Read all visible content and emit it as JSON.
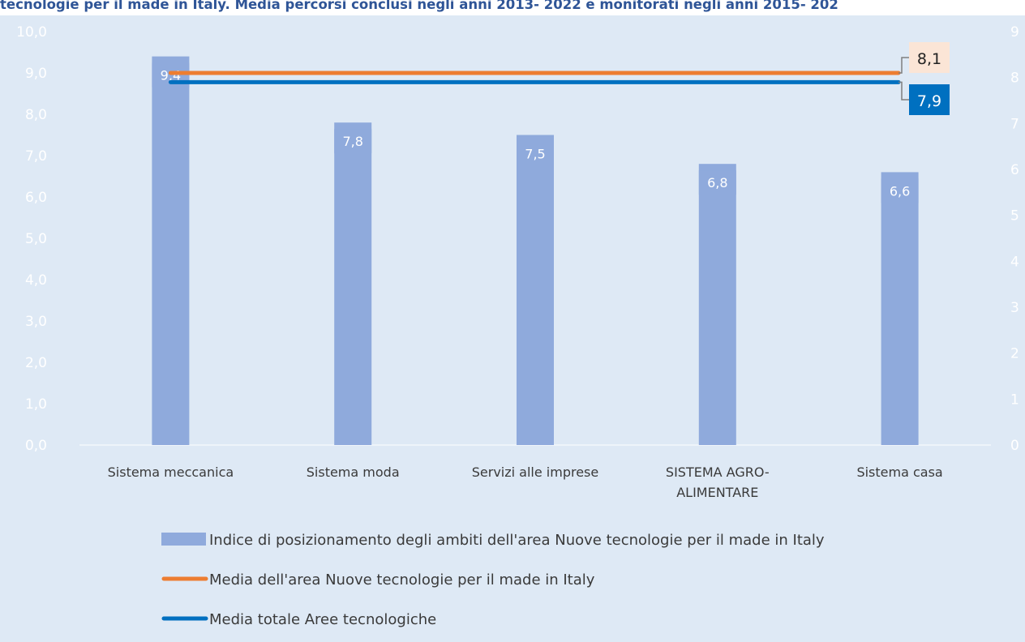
{
  "title": "tecnologie per il made in Italy. Media percorsi conclusi negli anni 2013- 2022 e monitorati negli anni 2015- 202",
  "colors": {
    "background": "#DEE9F5",
    "bar": "#8FAADC",
    "orange_line": "#ED7D31",
    "blue_line": "#0070C0",
    "orange_label_bg": "#FBE5D6",
    "blue_label_bg": "#0070C0",
    "title": "#2F5597",
    "axis": "#ffffff",
    "text": "#3a3a3a"
  },
  "chart_data": {
    "type": "bar",
    "title": "tecnologie per il made in Italy. Media percorsi conclusi negli anni 2013- 2022 e monitorati negli anni 2015- 202",
    "categories": [
      "Sistema meccanica",
      "Sistema moda",
      "Servizi alle imprese",
      "SISTEMA AGRO-ALIMENTARE",
      "Sistema casa"
    ],
    "category_lines": [
      [
        "Sistema meccanica"
      ],
      [
        "Sistema moda"
      ],
      [
        "Servizi alle imprese"
      ],
      [
        "SISTEMA AGRO-",
        "ALIMENTARE"
      ],
      [
        "Sistema casa"
      ]
    ],
    "series": [
      {
        "name": "Indice di posizionamento degli ambiti dell'area Nuove tecnologie per il made in Italy",
        "type": "bar",
        "values": [
          9.4,
          7.8,
          7.5,
          6.8,
          6.6
        ],
        "labels": [
          "9,4",
          "7,8",
          "7,5",
          "6,8",
          "6,6"
        ],
        "color": "#8FAADC"
      },
      {
        "name": "Media dell'area Nuove tecnologie per il made in Italy",
        "type": "line",
        "axis": "secondary",
        "value": 8.1,
        "label": "8,1",
        "color": "#ED7D31"
      },
      {
        "name": "Media totale Aree tecnologiche",
        "type": "line",
        "axis": "secondary",
        "value": 7.9,
        "label": "7,9",
        "color": "#0070C0"
      }
    ],
    "y_axis": {
      "range": [
        0,
        10
      ],
      "ticks": [
        "0,0",
        "1,0",
        "2,0",
        "3,0",
        "4,0",
        "5,0",
        "6,0",
        "7,0",
        "8,0",
        "9,0",
        "10,0"
      ]
    },
    "y2_axis": {
      "range": [
        0,
        9
      ],
      "ticks": [
        "0",
        "1",
        "2",
        "3",
        "4",
        "5",
        "6",
        "7",
        "8",
        "9"
      ]
    },
    "grid": false,
    "legend_position": "bottom"
  }
}
